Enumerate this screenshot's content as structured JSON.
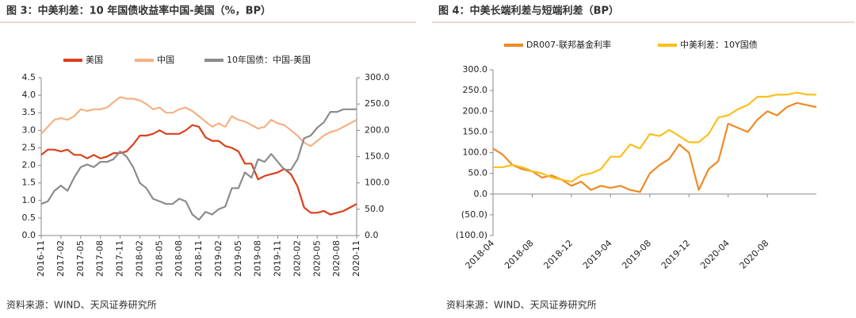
{
  "chart_data": [
    {
      "type": "line",
      "title": "图 3：中美利差：10 年国债收益率中国-美国（%，BP）",
      "source": "资料来源：WIND、天风证券研究所",
      "categories": [
        "2016-11",
        null,
        null,
        "2017-02",
        null,
        null,
        "2017-05",
        null,
        null,
        "2017-08",
        null,
        null,
        "2017-11",
        null,
        null,
        "2018-02",
        null,
        null,
        "2018-05",
        null,
        null,
        "2018-08",
        null,
        null,
        "2018-11",
        null,
        null,
        "2019-02",
        null,
        null,
        "2019-05",
        null,
        null,
        "2019-08",
        null,
        null,
        "2019-11",
        null,
        null,
        "2020-02",
        null,
        null,
        "2020-05",
        null,
        null,
        "2020-08",
        null,
        null,
        "2020-11"
      ],
      "series": [
        {
          "name": "美国",
          "color": "#d9401a",
          "values": [
            2.3,
            2.45,
            2.45,
            2.4,
            2.45,
            2.3,
            2.3,
            2.2,
            2.3,
            2.2,
            2.25,
            2.35,
            2.35,
            2.4,
            2.6,
            2.85,
            2.85,
            2.9,
            3.0,
            2.9,
            2.9,
            2.9,
            3.0,
            3.15,
            3.1,
            2.8,
            2.7,
            2.7,
            2.55,
            2.5,
            2.4,
            2.05,
            2.05,
            1.6,
            1.7,
            1.75,
            1.8,
            1.9,
            1.75,
            1.4,
            0.8,
            0.65,
            0.65,
            0.7,
            0.6,
            0.65,
            0.7,
            0.8,
            0.9
          ]
        },
        {
          "name": "中国",
          "color": "#f5b183",
          "values": [
            2.9,
            3.1,
            3.3,
            3.35,
            3.3,
            3.4,
            3.6,
            3.55,
            3.6,
            3.6,
            3.65,
            3.8,
            3.95,
            3.9,
            3.9,
            3.85,
            3.75,
            3.6,
            3.65,
            3.5,
            3.5,
            3.6,
            3.65,
            3.55,
            3.4,
            3.25,
            3.1,
            3.2,
            3.1,
            3.4,
            3.3,
            3.25,
            3.15,
            3.05,
            3.1,
            3.3,
            3.2,
            3.15,
            3.0,
            2.85,
            2.65,
            2.55,
            2.7,
            2.85,
            2.95,
            3.0,
            3.1,
            3.2,
            3.3
          ]
        },
        {
          "name": "10年国债：中国-美国",
          "color": "#8c8c8c",
          "axis": "y2",
          "values": [
            60,
            65,
            85,
            95,
            85,
            110,
            130,
            135,
            130,
            140,
            140,
            145,
            160,
            150,
            130,
            100,
            90,
            70,
            65,
            60,
            60,
            70,
            65,
            40,
            30,
            45,
            40,
            50,
            55,
            90,
            90,
            120,
            110,
            145,
            140,
            155,
            140,
            125,
            125,
            145,
            185,
            190,
            205,
            215,
            235,
            235,
            240,
            240,
            240
          ]
        }
      ],
      "ylim": [
        0,
        4.5
      ],
      "yticks": [
        {
          "value": 0,
          "label": "0.0"
        },
        0.5,
        {
          "value": 1,
          "label": "1.0"
        },
        1.5,
        {
          "value": 2,
          "label": "2.0"
        },
        2.5,
        {
          "value": 3,
          "label": "3.0"
        },
        3.5,
        {
          "value": 4,
          "label": "4.0"
        },
        4.5
      ],
      "y2lim": [
        0,
        300
      ],
      "y2ticks": [
        {
          "value": 0,
          "label": "0.0"
        },
        {
          "value": 50,
          "label": "50.0"
        },
        {
          "value": 100,
          "label": "100.0"
        },
        {
          "value": 150,
          "label": "150.0"
        },
        {
          "value": 200,
          "label": "200.0"
        },
        {
          "value": 250,
          "label": "250.0"
        },
        {
          "value": 300,
          "label": "300.0"
        }
      ]
    },
    {
      "type": "line",
      "title": "图 4：中美长端利差与短端利差（BP）",
      "source": "资料来源：WIND、天风证券研究所",
      "categories": [
        "2018-04",
        null,
        null,
        null,
        "2018-08",
        null,
        null,
        null,
        "2018-12",
        null,
        null,
        null,
        "2019-04",
        null,
        null,
        null,
        "2019-08",
        null,
        null,
        null,
        "2019-12",
        null,
        null,
        null,
        "2020-04",
        null,
        null,
        null,
        "2020-08",
        null,
        null,
        null,
        null,
        null
      ],
      "series": [
        {
          "name": "DR007-联邦基金利率",
          "color": "#f08a24",
          "values": [
            110,
            95,
            70,
            60,
            55,
            40,
            45,
            35,
            20,
            30,
            10,
            20,
            15,
            20,
            10,
            5,
            50,
            70,
            85,
            120,
            100,
            10,
            60,
            80,
            170,
            160,
            150,
            180,
            200,
            190,
            210,
            220,
            215,
            210
          ]
        },
        {
          "name": "中美利差：10Y国债",
          "color": "#fbbf1c",
          "values": [
            65,
            65,
            70,
            65,
            55,
            50,
            40,
            35,
            30,
            45,
            50,
            60,
            90,
            90,
            120,
            110,
            145,
            140,
            155,
            140,
            125,
            125,
            145,
            185,
            190,
            205,
            215,
            235,
            235,
            240,
            240,
            245,
            240,
            240
          ]
        }
      ],
      "ylim": [
        -100,
        300
      ],
      "yticks": [
        {
          "value": -100,
          "label": "(100.0)"
        },
        {
          "value": -50,
          "label": "(50.0)"
        },
        {
          "value": 0,
          "label": "0.0"
        },
        {
          "value": 50,
          "label": "50.0"
        },
        {
          "value": 100,
          "label": "100.0"
        },
        {
          "value": 150,
          "label": "150.0"
        },
        {
          "value": 200,
          "label": "200.0"
        },
        {
          "value": 250,
          "label": "250.0"
        },
        {
          "value": 300,
          "label": "300.0"
        }
      ],
      "negative_tick_color": "#ff0000"
    }
  ]
}
